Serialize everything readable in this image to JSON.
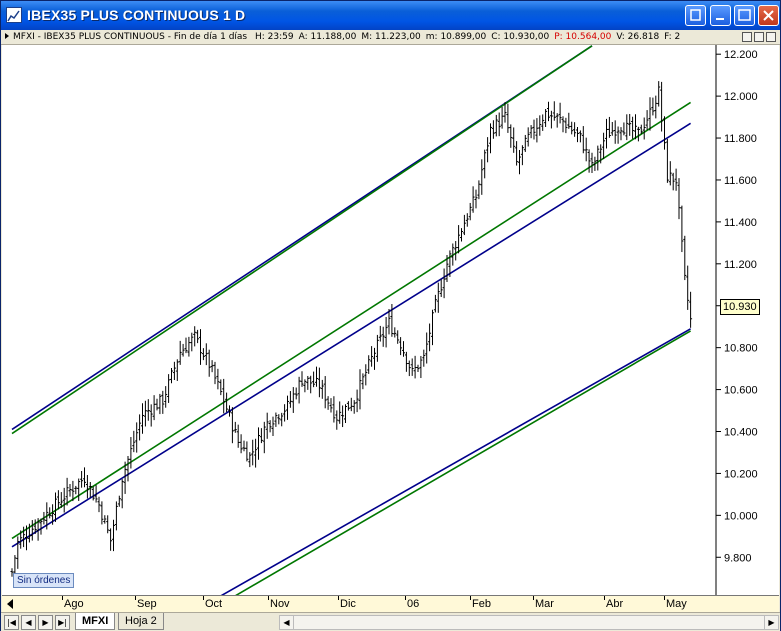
{
  "window": {
    "title": "IBEX35 PLUS CONTINUOUS 1 D"
  },
  "infobar": {
    "symbol": "MFXI",
    "description": "IBEX35 PLUS CONTINUOUS - Fin de día 1 días",
    "fields": [
      {
        "key": "H",
        "value": "23:59",
        "color": "#000000"
      },
      {
        "key": "A",
        "value": "11.188,00",
        "color": "#000000"
      },
      {
        "key": "M",
        "value": "11.223,00",
        "color": "#000000"
      },
      {
        "key": "m",
        "value": "10.899,00",
        "color": "#000000"
      },
      {
        "key": "C",
        "value": "10.930,00",
        "color": "#000000"
      },
      {
        "key": "P",
        "value": "10.564,00",
        "color": "#d40000"
      },
      {
        "key": "V",
        "value": "26.818",
        "color": "#000000"
      },
      {
        "key": "F",
        "value": "2",
        "color": "#000000"
      }
    ]
  },
  "chart": {
    "y_ticks": [
      "12.200",
      "12.000",
      "11.800",
      "11.600",
      "11.400",
      "11.200",
      "11.000",
      "10.800",
      "10.600",
      "10.400",
      "10.200",
      "10.000",
      "9.800"
    ],
    "last_price": "10.930",
    "orders_label": "Sin órdenes"
  },
  "x_axis": {
    "labels": [
      "Ago",
      "Sep",
      "Oct",
      "Nov",
      "Dic",
      "06",
      "Feb",
      "Mar",
      "Abr",
      "May"
    ]
  },
  "tabs": {
    "items": [
      {
        "label": "MFXI",
        "active": true
      },
      {
        "label": "Hoja 2",
        "active": false
      }
    ]
  },
  "chart_data": {
    "type": "ohlc-bar",
    "ylim": [
      9.62,
      12.22
    ],
    "y_ticks": [
      12.2,
      12.0,
      11.8,
      11.6,
      11.4,
      11.2,
      11.0,
      10.8,
      10.6,
      10.4,
      10.2,
      10.0,
      9.8
    ],
    "x_labels": [
      "Ago",
      "Sep",
      "Oct",
      "Nov",
      "Dic",
      "06",
      "Feb",
      "Mar",
      "Abr",
      "May"
    ],
    "last_close": 10930,
    "close_path_keypoints": [
      {
        "t": 0,
        "v": 9.73
      },
      {
        "t": 2,
        "v": 9.87
      },
      {
        "t": 10,
        "v": 9.98
      },
      {
        "t": 20,
        "v": 10.12
      },
      {
        "t": 25,
        "v": 10.18
      },
      {
        "t": 30,
        "v": 10.05
      },
      {
        "t": 34,
        "v": 9.88
      },
      {
        "t": 38,
        "v": 10.18
      },
      {
        "t": 45,
        "v": 10.48
      },
      {
        "t": 52,
        "v": 10.55
      },
      {
        "t": 58,
        "v": 10.78
      },
      {
        "t": 63,
        "v": 10.85
      },
      {
        "t": 68,
        "v": 10.72
      },
      {
        "t": 73,
        "v": 10.55
      },
      {
        "t": 78,
        "v": 10.35
      },
      {
        "t": 82,
        "v": 10.28
      },
      {
        "t": 88,
        "v": 10.44
      },
      {
        "t": 95,
        "v": 10.52
      },
      {
        "t": 100,
        "v": 10.65
      },
      {
        "t": 106,
        "v": 10.62
      },
      {
        "t": 112,
        "v": 10.47
      },
      {
        "t": 118,
        "v": 10.55
      },
      {
        "t": 125,
        "v": 10.78
      },
      {
        "t": 130,
        "v": 10.92
      },
      {
        "t": 134,
        "v": 10.82
      },
      {
        "t": 138,
        "v": 10.68
      },
      {
        "t": 142,
        "v": 10.75
      },
      {
        "t": 146,
        "v": 11.0
      },
      {
        "t": 150,
        "v": 11.2
      },
      {
        "t": 156,
        "v": 11.4
      },
      {
        "t": 160,
        "v": 11.52
      },
      {
        "t": 165,
        "v": 11.84
      },
      {
        "t": 170,
        "v": 11.9
      },
      {
        "t": 174,
        "v": 11.68
      },
      {
        "t": 178,
        "v": 11.8
      },
      {
        "t": 184,
        "v": 11.92
      },
      {
        "t": 190,
        "v": 11.88
      },
      {
        "t": 196,
        "v": 11.8
      },
      {
        "t": 200,
        "v": 11.66
      },
      {
        "t": 205,
        "v": 11.82
      },
      {
        "t": 210,
        "v": 11.86
      },
      {
        "t": 216,
        "v": 11.82
      },
      {
        "t": 220,
        "v": 11.92
      },
      {
        "t": 223,
        "v": 12.02
      },
      {
        "t": 226,
        "v": 11.62
      },
      {
        "t": 229,
        "v": 11.6
      },
      {
        "t": 232,
        "v": 11.12
      },
      {
        "t": 234,
        "v": 10.93
      }
    ],
    "trend_channels": [
      {
        "name": "blue",
        "color": "#00008b",
        "lines": [
          [
            [
              0,
              10.41
            ],
            [
              200,
              12.24
            ]
          ],
          [
            [
              0,
              9.85
            ],
            [
              234,
              11.87
            ]
          ],
          [
            [
              70,
              9.6
            ],
            [
              234,
              10.89
            ]
          ]
        ]
      },
      {
        "name": "green",
        "color": "#007700",
        "lines": [
          [
            [
              0,
              10.39
            ],
            [
              200,
              12.24
            ]
          ],
          [
            [
              0,
              9.89
            ],
            [
              234,
              11.97
            ]
          ],
          [
            [
              75,
              9.6
            ],
            [
              234,
              10.88
            ]
          ]
        ]
      }
    ]
  }
}
